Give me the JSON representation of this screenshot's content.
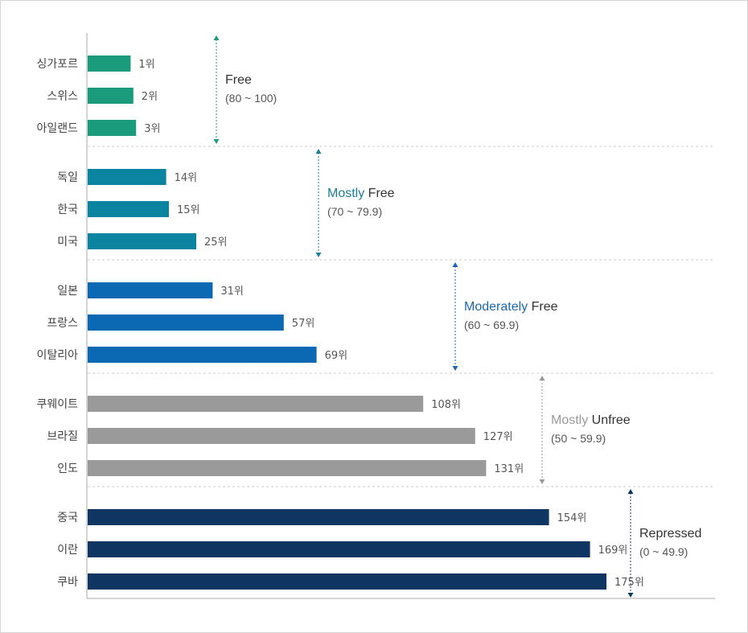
{
  "chart_data": {
    "type": "bar",
    "orientation": "horizontal",
    "title": "",
    "xlabel": "",
    "ylabel": "",
    "value_suffix": "위",
    "grid": false,
    "categories": [
      "싱가포르",
      "스위스",
      "아일랜드",
      "독일",
      "한국",
      "미국",
      "일본",
      "프랑스",
      "이탈리아",
      "쿠웨이트",
      "브라질",
      "인도",
      "중국",
      "이란",
      "쿠바"
    ],
    "values": [
      1,
      2,
      3,
      14,
      15,
      25,
      31,
      57,
      69,
      108,
      127,
      131,
      154,
      169,
      175
    ],
    "value_labels": [
      "1위",
      "2위",
      "3위",
      "14위",
      "15위",
      "25위",
      "31위",
      "57위",
      "69위",
      "108위",
      "127위",
      "131위",
      "154위",
      "169위",
      "175위"
    ],
    "groups": [
      {
        "first": "",
        "second": "Free",
        "range": "(80 ~ 100)",
        "color": "#1a9b7c",
        "label_color": "#1a9b7c",
        "start": 0,
        "count": 3
      },
      {
        "first": "Mostly",
        "second": "Free",
        "range": "(70 ~ 79.9)",
        "color": "#0a84a0",
        "label_color": "#1a7f96",
        "start": 3,
        "count": 3
      },
      {
        "first": "Moderately",
        "second": "Free",
        "range": "(60 ~ 69.9)",
        "color": "#0b68b3",
        "label_color": "#1b68b0",
        "start": 6,
        "count": 3
      },
      {
        "first": "Mostly",
        "second": "Unfree",
        "range": "(50 ~ 59.9)",
        "color": "#9a9a9a",
        "label_color": "#9a9a9a",
        "start": 9,
        "count": 3
      },
      {
        "first": "",
        "second": "Repressed",
        "range": "(0 ~ 49.9)",
        "color": "#0f3563",
        "label_color": "#0f3563",
        "start": 12,
        "count": 3
      }
    ],
    "name_second_color": "#333333"
  }
}
